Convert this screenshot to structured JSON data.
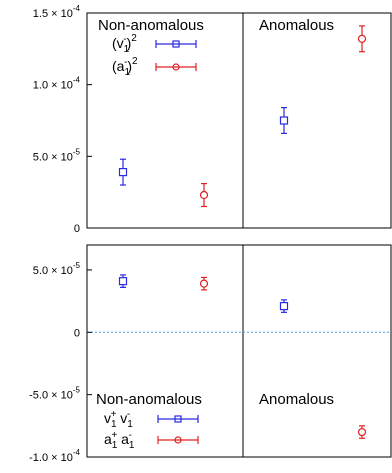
{
  "colors": {
    "series_v": "#2a2ae0",
    "series_a": "#e02020",
    "zero_line": "#4aa3df",
    "frame": "#000000"
  },
  "chart_data": [
    {
      "type": "scatter",
      "yrange": [
        0,
        0.00015
      ],
      "categories": [
        "Non-anomalous",
        "Anomalous"
      ],
      "y_tick_values": [
        0,
        5e-05,
        0.0001,
        0.00015
      ],
      "y_tick_labels": [
        {
          "value": 0,
          "mant": "0",
          "exp": ""
        },
        {
          "value": 5e-05,
          "mant": "5.0 × 10",
          "exp": "-5"
        },
        {
          "value": 0.0001,
          "mant": "1.0 × 10",
          "exp": "-4"
        },
        {
          "value": 0.00015,
          "mant": "1.5 × 10",
          "exp": "-4"
        }
      ],
      "legend": {
        "title": "Non-anomalous",
        "entries": [
          {
            "base": "(v",
            "sub": "1",
            "sup1": "-",
            "close": ")",
            "sup2": "2",
            "marker": "square",
            "color": "#2a2ae0"
          },
          {
            "base": "(a",
            "sub": "1",
            "sup1": "-",
            "close": ")",
            "sup2": "2",
            "marker": "circle",
            "color": "#e02020"
          }
        ]
      },
      "region_label_right": "Anomalous",
      "series": [
        {
          "marker": "square",
          "color": "#2a2ae0",
          "points": [
            {
              "category": "Non-anomalous",
              "y": 3.9e-05,
              "err": 9e-06
            },
            {
              "category": "Anomalous",
              "y": 7.5e-05,
              "err": 9e-06
            }
          ]
        },
        {
          "marker": "circle",
          "color": "#e02020",
          "points": [
            {
              "category": "Non-anomalous",
              "y": 2.3e-05,
              "err": 8e-06
            },
            {
              "category": "Anomalous",
              "y": 0.000132,
              "err": 9e-06
            }
          ]
        }
      ]
    },
    {
      "type": "scatter",
      "yrange": [
        -0.0001,
        7e-05
      ],
      "categories": [
        "Non-anomalous",
        "Anomalous"
      ],
      "y_tick_values": [
        -0.0001,
        -5e-05,
        0,
        5e-05
      ],
      "y_tick_labels": [
        {
          "value": -0.0001,
          "mant": "-1.0 × 10",
          "exp": "-4"
        },
        {
          "value": -5e-05,
          "mant": "-5.0 × 10",
          "exp": "-5"
        },
        {
          "value": 0,
          "mant": "0",
          "exp": ""
        },
        {
          "value": 5e-05,
          "mant": "5.0 × 10",
          "exp": "-5"
        }
      ],
      "zero_line": true,
      "legend": {
        "title": "Non-anomalous",
        "entries": [
          {
            "t1": "v",
            "s1": "1",
            "p1": "+",
            "t2": " v",
            "s2": "1",
            "p2": "-",
            "marker": "square",
            "color": "#2a2ae0"
          },
          {
            "t1": "a",
            "s1": "1",
            "p1": "+",
            "t2": " a",
            "s2": "1",
            "p2": "-",
            "marker": "circle",
            "color": "#e02020"
          }
        ]
      },
      "region_label_right": "Anomalous",
      "series": [
        {
          "marker": "square",
          "color": "#2a2ae0",
          "points": [
            {
              "category": "Non-anomalous",
              "y": 4.1e-05,
              "err": 5e-06
            },
            {
              "category": "Anomalous",
              "y": 2.1e-05,
              "err": 5e-06
            }
          ]
        },
        {
          "marker": "circle",
          "color": "#e02020",
          "points": [
            {
              "category": "Non-anomalous",
              "y": 3.9e-05,
              "err": 5e-06
            },
            {
              "category": "Anomalous",
              "y": -8e-05,
              "err": 5e-06
            }
          ]
        }
      ]
    }
  ]
}
